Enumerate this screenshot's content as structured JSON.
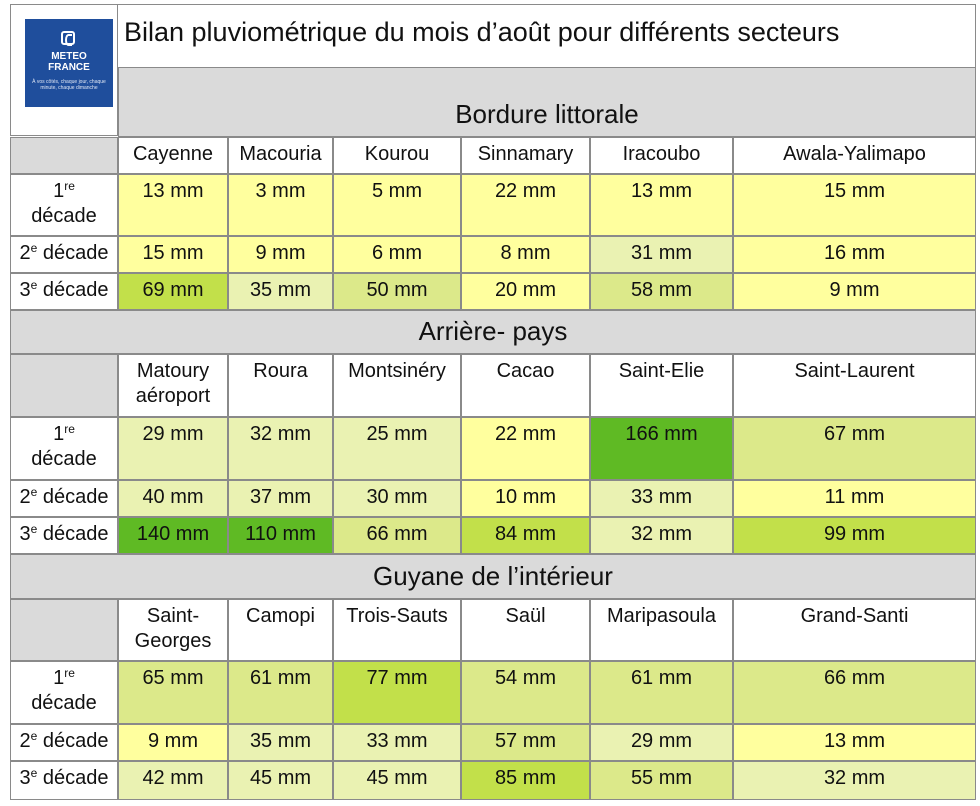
{
  "title": "Bilan pluviométrique du mois d’août pour différents secteurs",
  "logo": {
    "line1": "METEO",
    "line2": "FRANCE",
    "tagline": "À vos côtés, chaque jour, chaque minute, chaque dimanche"
  },
  "decade_labels": {
    "d1": {
      "num": "1",
      "sup": "re",
      "word": "décade"
    },
    "d2": {
      "num": "2",
      "sup": "e",
      "word": "décade"
    },
    "d3": {
      "num": "3",
      "sup": "e",
      "word": "décade"
    }
  },
  "colors": {
    "pale_yellow": "#ffff9e",
    "pale_green": "#eaf2b2",
    "light_green": "#dce98a",
    "mid_green": "#c2e04a",
    "dark_green": "#5fba24",
    "section_grey": "#dadada"
  },
  "sections": [
    {
      "name": "Bordure littorale",
      "stations": [
        "Cayenne",
        "Macouria",
        "Kourou",
        "Sinnamary",
        "Iracoubo",
        "Awala-Yalimapo"
      ],
      "rows": [
        {
          "values": [
            "13 mm",
            "3 mm",
            "5 mm",
            "22 mm",
            "13 mm",
            "15 mm"
          ],
          "colors": [
            "#ffff9e",
            "#ffff9e",
            "#ffff9e",
            "#ffff9e",
            "#ffff9e",
            "#ffff9e"
          ]
        },
        {
          "values": [
            "15 mm",
            "9 mm",
            "6 mm",
            "8 mm",
            "31 mm",
            "16 mm"
          ],
          "colors": [
            "#ffff9e",
            "#ffff9e",
            "#ffff9e",
            "#ffff9e",
            "#eaf2b2",
            "#ffff9e"
          ]
        },
        {
          "values": [
            "69 mm",
            "35 mm",
            "50 mm",
            "20 mm",
            "58 mm",
            "9 mm"
          ],
          "colors": [
            "#c2e04a",
            "#eaf2b2",
            "#dce98a",
            "#ffff9e",
            "#dce98a",
            "#ffff9e"
          ]
        }
      ]
    },
    {
      "name": "Arrière- pays",
      "stations": [
        "Matoury aéroport",
        "Roura",
        "Montsinéry",
        "Cacao",
        "Saint-Elie",
        "Saint-Laurent"
      ],
      "rows": [
        {
          "values": [
            "29 mm",
            "32 mm",
            "25 mm",
            "22 mm",
            "166 mm",
            "67 mm"
          ],
          "colors": [
            "#eaf2b2",
            "#eaf2b2",
            "#eaf2b2",
            "#ffff9e",
            "#5fba24",
            "#dce98a"
          ]
        },
        {
          "values": [
            "40 mm",
            "37 mm",
            "30 mm",
            "10 mm",
            "33 mm",
            "11 mm"
          ],
          "colors": [
            "#eaf2b2",
            "#eaf2b2",
            "#eaf2b2",
            "#ffff9e",
            "#eaf2b2",
            "#ffff9e"
          ]
        },
        {
          "values": [
            "140 mm",
            "110 mm",
            "66 mm",
            "84 mm",
            "32 mm",
            "99 mm"
          ],
          "colors": [
            "#5fba24",
            "#5fba24",
            "#dce98a",
            "#c2e04a",
            "#eaf2b2",
            "#c2e04a"
          ]
        }
      ]
    },
    {
      "name": "Guyane de l’intérieur",
      "stations": [
        "Saint-Georges",
        "Camopi",
        "Trois-Sauts",
        "Saül",
        "Maripasoula",
        "Grand-Santi"
      ],
      "rows": [
        {
          "values": [
            "65 mm",
            "61 mm",
            "77 mm",
            "54 mm",
            "61 mm",
            "66 mm"
          ],
          "colors": [
            "#dce98a",
            "#dce98a",
            "#c2e04a",
            "#dce98a",
            "#dce98a",
            "#dce98a"
          ]
        },
        {
          "values": [
            "9 mm",
            "35 mm",
            "33 mm",
            "57 mm",
            "29 mm",
            "13 mm"
          ],
          "colors": [
            "#ffff9e",
            "#eaf2b2",
            "#eaf2b2",
            "#dce98a",
            "#eaf2b2",
            "#ffff9e"
          ]
        },
        {
          "values": [
            "42 mm",
            "45 mm",
            "45 mm",
            "85 mm",
            "55 mm",
            "32 mm"
          ],
          "colors": [
            "#eaf2b2",
            "#eaf2b2",
            "#eaf2b2",
            "#c2e04a",
            "#dce98a",
            "#eaf2b2"
          ]
        }
      ]
    }
  ]
}
